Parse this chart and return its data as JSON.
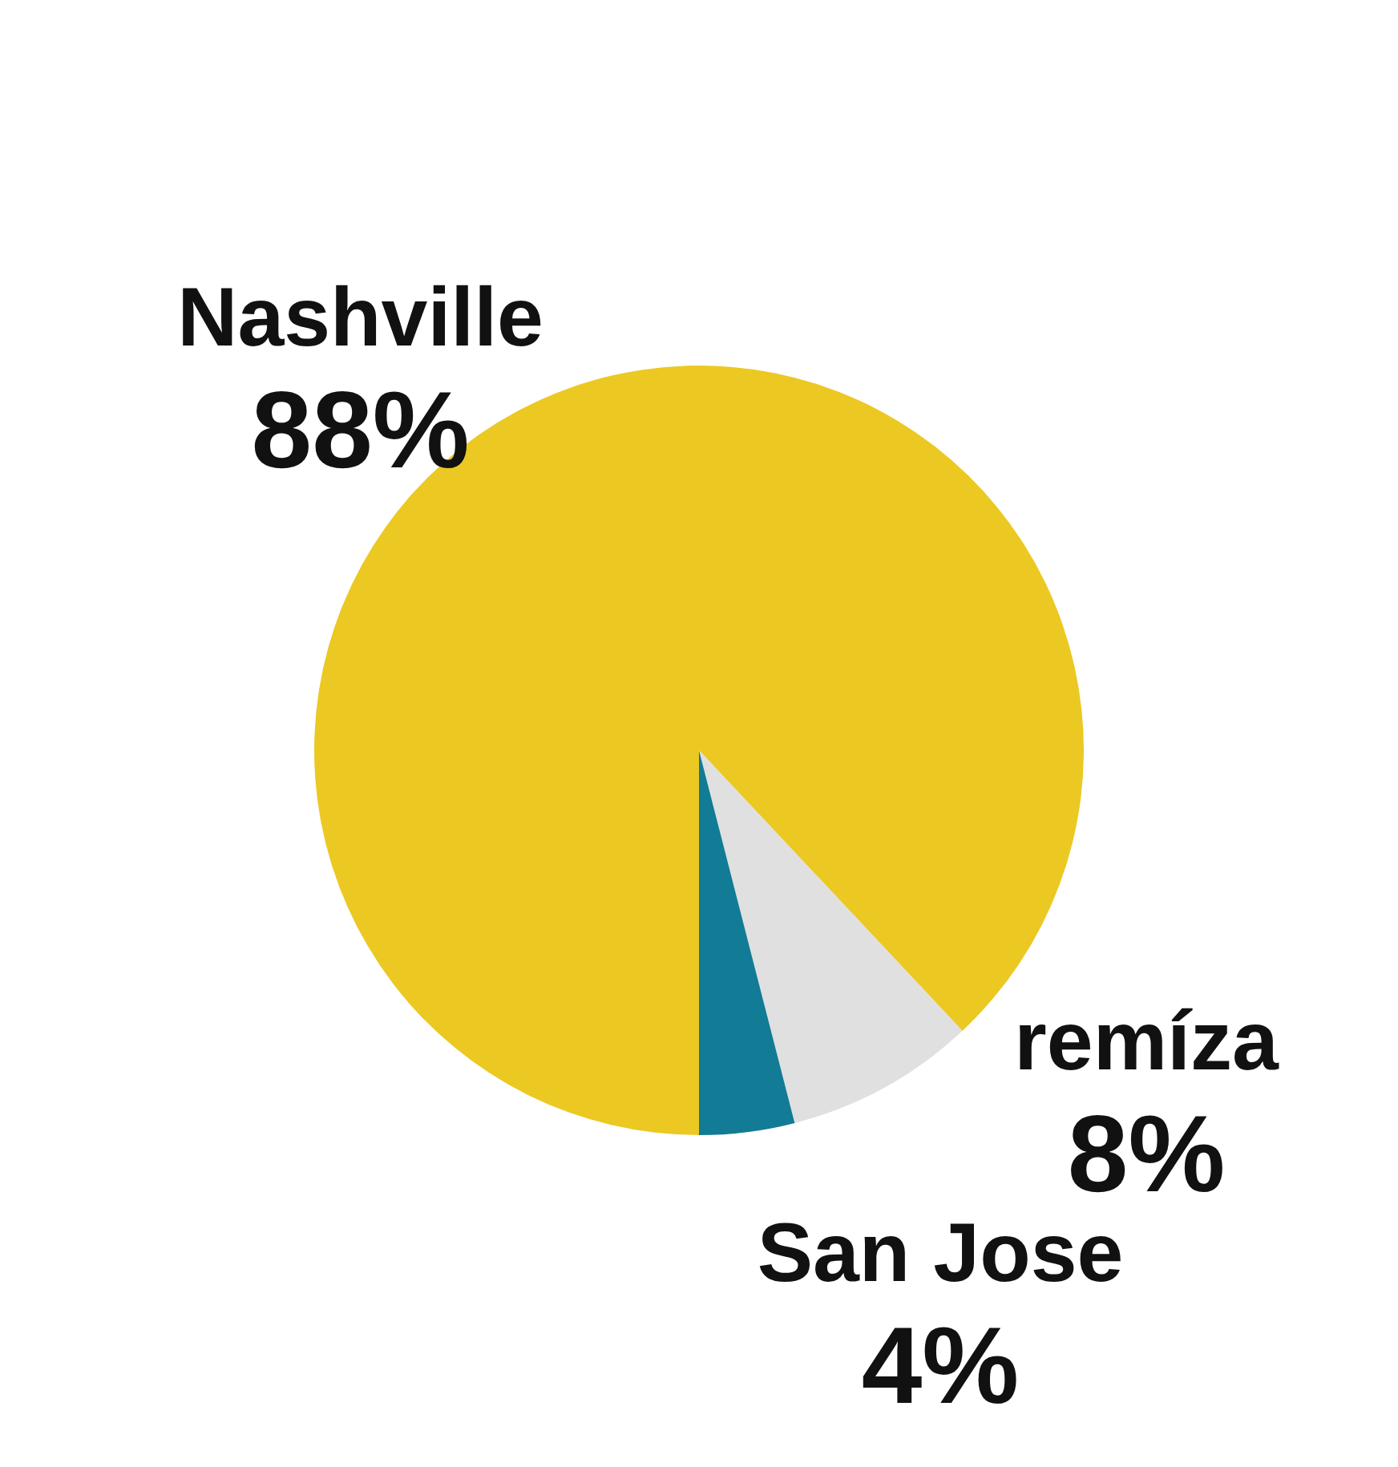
{
  "chart_data": {
    "type": "pie",
    "categories": [
      "Nashville",
      "remíza",
      "San Jose"
    ],
    "values": [
      88,
      8,
      4
    ],
    "colors": [
      "#ecc823",
      "#e0e0e0",
      "#127b95"
    ],
    "value_labels": [
      "88%",
      "8%",
      "4%"
    ],
    "legend": false
  }
}
